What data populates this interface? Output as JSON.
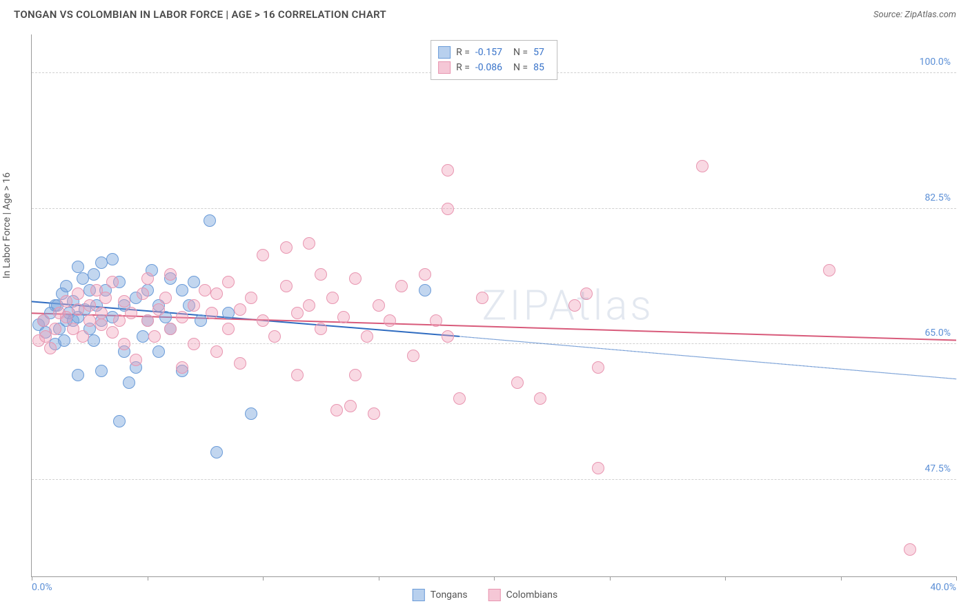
{
  "header": {
    "title": "TONGAN VS COLOMBIAN IN LABOR FORCE | AGE > 16 CORRELATION CHART",
    "source": "Source: ZipAtlas.com"
  },
  "watermark": "ZIPAtlas",
  "chart": {
    "type": "scatter",
    "y_axis_title": "In Labor Force | Age > 16",
    "xlim": [
      0,
      40
    ],
    "ylim": [
      35,
      105
    ],
    "x_ticks": [
      0,
      5,
      10,
      15,
      20,
      25,
      30,
      35,
      40
    ],
    "x_tick_labels": {
      "0": "0.0%",
      "40": "40.0%"
    },
    "y_grid": [
      47.5,
      65.0,
      82.5,
      100.0
    ],
    "y_tick_labels": [
      "47.5%",
      "65.0%",
      "82.5%",
      "100.0%"
    ],
    "tick_label_color": "#5b8fd6",
    "grid_color": "#d0d0d0",
    "axis_color": "#999999",
    "marker_radius": 9,
    "series": [
      {
        "name": "Tongans",
        "fill": "rgba(120,165,220,0.45)",
        "stroke": "#6a9bd8",
        "swatch_fill": "#b8d0ee",
        "swatch_border": "#6a9bd8",
        "R": "-0.157",
        "N": "57",
        "trend": {
          "x1": 0,
          "y1": 70.5,
          "x2": 18.5,
          "y2": 66.0,
          "x2_dash": 40,
          "y2_dash": 60.5,
          "color": "#2e6bc0",
          "width": 2
        },
        "points": [
          [
            0.3,
            67.5
          ],
          [
            0.5,
            68.0
          ],
          [
            0.6,
            66.5
          ],
          [
            0.8,
            69.0
          ],
          [
            1.0,
            70.0
          ],
          [
            1.0,
            65.0
          ],
          [
            1.1,
            70.0
          ],
          [
            1.2,
            67.0
          ],
          [
            1.3,
            71.5
          ],
          [
            1.5,
            68.0
          ],
          [
            1.5,
            72.5
          ],
          [
            1.6,
            69.0
          ],
          [
            1.8,
            68.0
          ],
          [
            1.8,
            70.5
          ],
          [
            2.0,
            75.0
          ],
          [
            2.0,
            68.5
          ],
          [
            2.0,
            61.0
          ],
          [
            2.2,
            73.5
          ],
          [
            2.3,
            69.5
          ],
          [
            2.5,
            72.0
          ],
          [
            2.5,
            67.0
          ],
          [
            2.7,
            74.0
          ],
          [
            2.8,
            70.0
          ],
          [
            3.0,
            75.5
          ],
          [
            3.0,
            68.0
          ],
          [
            3.0,
            61.5
          ],
          [
            3.2,
            72.0
          ],
          [
            3.5,
            76.0
          ],
          [
            3.5,
            68.5
          ],
          [
            3.8,
            73.0
          ],
          [
            4.0,
            64.0
          ],
          [
            4.0,
            70.0
          ],
          [
            4.2,
            60.0
          ],
          [
            4.5,
            71.0
          ],
          [
            4.5,
            62.0
          ],
          [
            5.0,
            72.0
          ],
          [
            5.0,
            68.0
          ],
          [
            5.2,
            74.5
          ],
          [
            5.5,
            70.0
          ],
          [
            5.8,
            68.5
          ],
          [
            6.0,
            73.5
          ],
          [
            6.0,
            67.0
          ],
          [
            6.5,
            72.0
          ],
          [
            6.5,
            61.5
          ],
          [
            7.0,
            73.0
          ],
          [
            7.3,
            68.0
          ],
          [
            7.7,
            81.0
          ],
          [
            8.0,
            51.0
          ],
          [
            8.5,
            69.0
          ],
          [
            9.5,
            56.0
          ],
          [
            3.8,
            55.0
          ],
          [
            17.0,
            72.0
          ],
          [
            2.7,
            65.5
          ],
          [
            1.4,
            65.5
          ],
          [
            4.8,
            66.0
          ],
          [
            5.5,
            64.0
          ],
          [
            6.8,
            70.0
          ]
        ]
      },
      {
        "name": "Colombians",
        "fill": "rgba(240,160,185,0.40)",
        "stroke": "#e895b0",
        "swatch_fill": "#f5c7d6",
        "swatch_border": "#e895b0",
        "R": "-0.086",
        "N": "85",
        "trend": {
          "x1": 0,
          "y1": 69.0,
          "x2": 40,
          "y2": 65.5,
          "color": "#d85a7a",
          "width": 2
        },
        "points": [
          [
            0.3,
            65.5
          ],
          [
            0.5,
            68.0
          ],
          [
            0.6,
            66.0
          ],
          [
            0.8,
            64.5
          ],
          [
            1.0,
            67.0
          ],
          [
            1.2,
            69.0
          ],
          [
            1.5,
            68.5
          ],
          [
            1.5,
            70.5
          ],
          [
            1.8,
            67.0
          ],
          [
            2.0,
            69.5
          ],
          [
            2.0,
            71.5
          ],
          [
            2.2,
            66.0
          ],
          [
            2.5,
            68.0
          ],
          [
            2.5,
            70.0
          ],
          [
            2.8,
            72.0
          ],
          [
            3.0,
            67.5
          ],
          [
            3.0,
            69.0
          ],
          [
            3.2,
            71.0
          ],
          [
            3.5,
            66.5
          ],
          [
            3.5,
            73.0
          ],
          [
            3.8,
            68.0
          ],
          [
            4.0,
            70.5
          ],
          [
            4.0,
            65.0
          ],
          [
            4.3,
            69.0
          ],
          [
            4.5,
            63.0
          ],
          [
            4.8,
            71.5
          ],
          [
            5.0,
            68.0
          ],
          [
            5.0,
            73.5
          ],
          [
            5.3,
            66.0
          ],
          [
            5.5,
            69.5
          ],
          [
            5.8,
            71.0
          ],
          [
            6.0,
            67.0
          ],
          [
            6.0,
            74.0
          ],
          [
            6.5,
            68.5
          ],
          [
            6.5,
            62.0
          ],
          [
            7.0,
            70.0
          ],
          [
            7.0,
            65.0
          ],
          [
            7.5,
            72.0
          ],
          [
            7.8,
            69.0
          ],
          [
            8.0,
            71.5
          ],
          [
            8.0,
            64.0
          ],
          [
            8.5,
            67.0
          ],
          [
            8.5,
            73.0
          ],
          [
            9.0,
            69.5
          ],
          [
            9.0,
            62.5
          ],
          [
            9.5,
            71.0
          ],
          [
            10.0,
            68.0
          ],
          [
            10.0,
            76.5
          ],
          [
            10.5,
            66.0
          ],
          [
            11.0,
            72.5
          ],
          [
            11.0,
            77.5
          ],
          [
            11.5,
            69.0
          ],
          [
            12.0,
            78.0
          ],
          [
            12.0,
            70.0
          ],
          [
            12.5,
            67.0
          ],
          [
            12.5,
            74.0
          ],
          [
            13.0,
            71.0
          ],
          [
            13.2,
            56.5
          ],
          [
            13.5,
            68.5
          ],
          [
            13.8,
            57.0
          ],
          [
            14.0,
            73.5
          ],
          [
            14.5,
            66.0
          ],
          [
            14.8,
            56.0
          ],
          [
            15.0,
            70.0
          ],
          [
            15.5,
            68.0
          ],
          [
            16.0,
            72.5
          ],
          [
            16.5,
            63.5
          ],
          [
            17.0,
            74.0
          ],
          [
            17.5,
            68.0
          ],
          [
            18.0,
            66.0
          ],
          [
            18.0,
            82.5
          ],
          [
            18.0,
            87.5
          ],
          [
            18.5,
            58.0
          ],
          [
            19.5,
            71.0
          ],
          [
            21.0,
            60.0
          ],
          [
            22.0,
            58.0
          ],
          [
            23.5,
            70.0
          ],
          [
            24.0,
            71.5
          ],
          [
            24.5,
            62.0
          ],
          [
            24.5,
            49.0
          ],
          [
            29.0,
            88.0
          ],
          [
            34.5,
            74.5
          ],
          [
            38.0,
            38.5
          ],
          [
            14.0,
            61.0
          ],
          [
            11.5,
            61.0
          ]
        ]
      }
    ]
  },
  "bottom_legend": [
    {
      "label": "Tongans",
      "series_idx": 0
    },
    {
      "label": "Colombians",
      "series_idx": 1
    }
  ]
}
